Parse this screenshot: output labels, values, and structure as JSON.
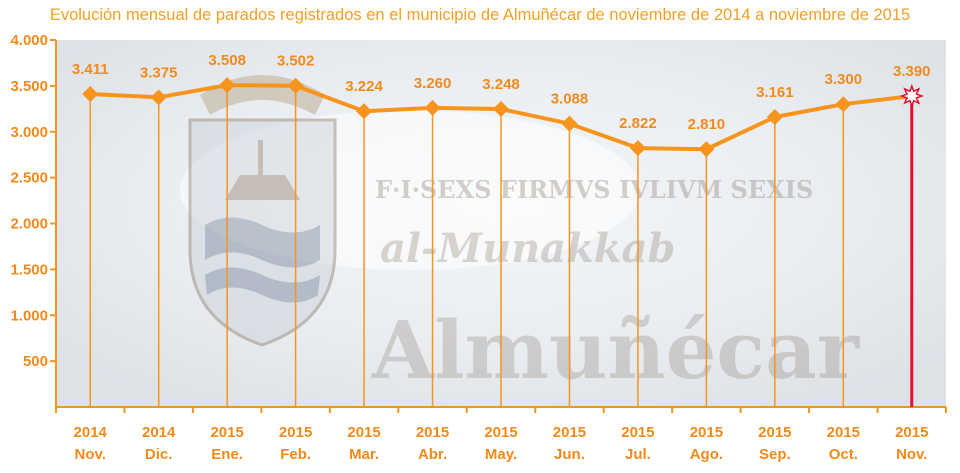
{
  "title": "Evolución mensual de parados registrados en el municipio de Almuñécar de noviembre de 2014 a noviembre de 2015",
  "colors": {
    "line": "#f7941d",
    "marker": "#f7941d",
    "label": "#f28a1c",
    "last_label": "#e8102c",
    "highlight_bar": "#e8102c",
    "title": "#f5a020"
  },
  "watermark": {
    "lines": [
      "F·I·SEXS FIRMVS IVLIVM SEXIS",
      "al-Munakkab",
      "Almuñécar"
    ]
  },
  "chart_data": {
    "type": "line",
    "title": "Evolución mensual de parados registrados en el municipio de Almuñécar de noviembre de 2014 a noviembre de 2015",
    "xlabel": "",
    "ylabel": "",
    "ylim": [
      0,
      4000
    ],
    "yticks": [
      "500",
      "1.000",
      "1.500",
      "2.000",
      "2.500",
      "3.000",
      "3.500",
      "4.000"
    ],
    "ytick_values": [
      500,
      1000,
      1500,
      2000,
      2500,
      3000,
      3500,
      4000
    ],
    "grid": false,
    "categories": [
      {
        "year": "2014",
        "month": "Nov."
      },
      {
        "year": "2014",
        "month": "Dic."
      },
      {
        "year": "2015",
        "month": "Ene."
      },
      {
        "year": "2015",
        "month": "Feb."
      },
      {
        "year": "2015",
        "month": "Mar."
      },
      {
        "year": "2015",
        "month": "Abr."
      },
      {
        "year": "2015",
        "month": "May."
      },
      {
        "year": "2015",
        "month": "Jun."
      },
      {
        "year": "2015",
        "month": "Jul."
      },
      {
        "year": "2015",
        "month": "Ago."
      },
      {
        "year": "2015",
        "month": "Sep."
      },
      {
        "year": "2015",
        "month": "Oct."
      },
      {
        "year": "2015",
        "month": "Nov."
      }
    ],
    "values": [
      3411,
      3375,
      3508,
      3502,
      3224,
      3260,
      3248,
      3088,
      2822,
      2810,
      3161,
      3300,
      3390
    ],
    "value_labels": [
      "3.411",
      "3.375",
      "3.508",
      "3.502",
      "3.224",
      "3.260",
      "3.248",
      "3.088",
      "2.822",
      "2.810",
      "3.161",
      "3.300",
      "3.390"
    ]
  }
}
